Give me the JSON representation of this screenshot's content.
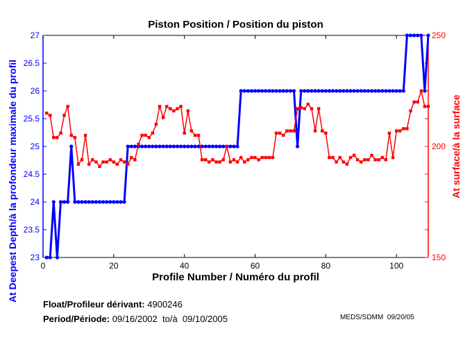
{
  "chart_data": {
    "type": "line",
    "title": "Piston Position / Position du piston",
    "xlabel": "Profile Number / Numéro du profil",
    "ylabel_left": "At Deepest Depth/à la profondeur maximale du profil",
    "ylabel_right": "At surface/à la surface",
    "xlim": [
      0,
      109
    ],
    "ylim_left": [
      23,
      27
    ],
    "ylim_right": [
      150,
      250
    ],
    "x_ticks": [
      0,
      20,
      40,
      60,
      80,
      100
    ],
    "y_left_ticks": [
      23,
      23.5,
      24,
      24.5,
      25,
      25.5,
      26,
      26.5,
      27
    ],
    "y_right_ticks": [
      150,
      200,
      250
    ],
    "grid": false,
    "colors": {
      "left": "#0000ff",
      "right": "#ff0000"
    },
    "series": [
      {
        "name": "At Deepest Depth",
        "axis": "left",
        "color": "#0000ff",
        "values": [
          23,
          23,
          24,
          23,
          24,
          24,
          24,
          25,
          24,
          24,
          24,
          24,
          24,
          24,
          24,
          24,
          24,
          24,
          24,
          24,
          24,
          24,
          24,
          25,
          25,
          25,
          25,
          25,
          25,
          25,
          25,
          25,
          25,
          25,
          25,
          25,
          25,
          25,
          25,
          25,
          25,
          25,
          25,
          25,
          25,
          25,
          25,
          25,
          25,
          25,
          25,
          25,
          25,
          25,
          25,
          26,
          26,
          26,
          26,
          26,
          26,
          26,
          26,
          26,
          26,
          26,
          26,
          26,
          26,
          26,
          26,
          25,
          26,
          26,
          26,
          26,
          26,
          26,
          26,
          26,
          26,
          26,
          26,
          26,
          26,
          26,
          26,
          26,
          26,
          26,
          26,
          26,
          26,
          26,
          26,
          26,
          26,
          26,
          26,
          26,
          26,
          26,
          27,
          27,
          27,
          27,
          27,
          26,
          27
        ]
      },
      {
        "name": "At surface",
        "axis": "right",
        "color": "#ff0000",
        "values": [
          215,
          214,
          204,
          204,
          206,
          214,
          218,
          205,
          204,
          192,
          194,
          205,
          192,
          194,
          193,
          191,
          193,
          193,
          194,
          193,
          192,
          194,
          193,
          192,
          195,
          194,
          201,
          205,
          205,
          204,
          206,
          210,
          218,
          213,
          218,
          217,
          216,
          217,
          218,
          206,
          216,
          207,
          205,
          205,
          194,
          194,
          193,
          194,
          193,
          193,
          194,
          200,
          193,
          194,
          193,
          195,
          193,
          194,
          195,
          195,
          194,
          195,
          195,
          195,
          195,
          206,
          206,
          205,
          207,
          207,
          207,
          217,
          217.5,
          217,
          219,
          217,
          207,
          217,
          207,
          206,
          195,
          195,
          193,
          195,
          193,
          192,
          195,
          196,
          194,
          193,
          194,
          194,
          196,
          194,
          194,
          195,
          194,
          206,
          195,
          207,
          207,
          208,
          208,
          216,
          220,
          220,
          225,
          218,
          218
        ]
      }
    ]
  },
  "footer": {
    "float_label": "Float/Profileur dérivant:",
    "float_value": "4900246",
    "period_label": "Period/Période:",
    "period_value": "09/16/2002  to/à  09/10/2005",
    "credit": "MEDS/SDMM  09/20/05"
  }
}
